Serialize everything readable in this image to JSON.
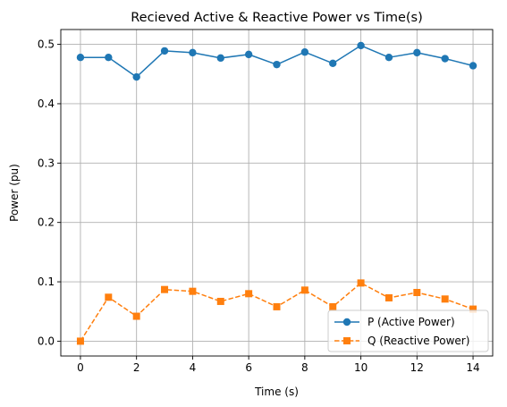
{
  "chart_data": {
    "type": "line",
    "title": "Recieved Active & Reactive Power vs Time(s)",
    "xlabel": "Time (s)",
    "ylabel": "Power (pu)",
    "xlim": [
      -0.7,
      14.7
    ],
    "ylim": [
      -0.025,
      0.525
    ],
    "xticks": [
      0,
      2,
      4,
      6,
      8,
      10,
      12,
      14
    ],
    "xtick_labels": [
      "0",
      "2",
      "4",
      "6",
      "8",
      "10",
      "12",
      "14"
    ],
    "yticks": [
      0.0,
      0.1,
      0.2,
      0.3,
      0.4,
      0.5
    ],
    "ytick_labels": [
      "0.0",
      "0.1",
      "0.2",
      "0.3",
      "0.4",
      "0.5"
    ],
    "grid": true,
    "legend_position": "lower-right",
    "x": [
      0,
      1,
      2,
      3,
      4,
      5,
      6,
      7,
      8,
      9,
      10,
      11,
      12,
      13,
      14
    ],
    "series": [
      {
        "name": "P (Active Power)",
        "color": "#1f77b4",
        "marker": "circle",
        "linestyle": "solid",
        "values": [
          0.478,
          0.478,
          0.445,
          0.489,
          0.486,
          0.477,
          0.483,
          0.466,
          0.487,
          0.468,
          0.498,
          0.478,
          0.486,
          0.476,
          0.464
        ]
      },
      {
        "name": "Q (Reactive Power)",
        "color": "#ff7f0e",
        "marker": "square",
        "linestyle": "dashed",
        "values": [
          0.0,
          0.074,
          0.042,
          0.087,
          0.084,
          0.067,
          0.08,
          0.058,
          0.086,
          0.058,
          0.098,
          0.073,
          0.082,
          0.071,
          0.054
        ]
      }
    ]
  }
}
